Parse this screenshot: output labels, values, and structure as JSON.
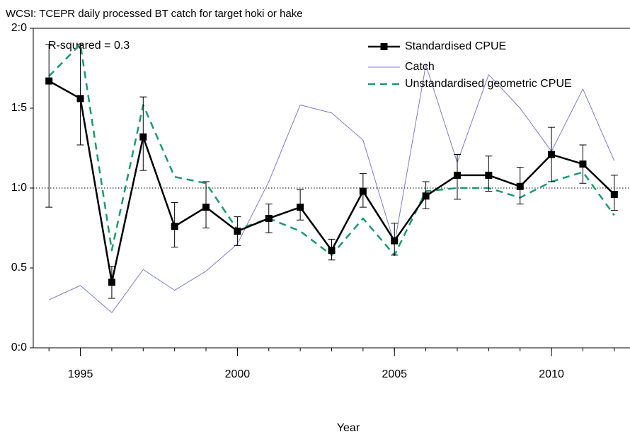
{
  "chart_data": {
    "type": "line",
    "title": "WCSI: TCEPR daily processed BT catch for target hoki or hake",
    "annotation": "R-squared = 0.3",
    "x_label": "Year",
    "x": [
      1994,
      1995,
      1996,
      1997,
      1998,
      1999,
      2000,
      2001,
      2002,
      2003,
      2004,
      2005,
      2006,
      2007,
      2008,
      2009,
      2010,
      2011,
      2012
    ],
    "xlim": [
      1993.5,
      2012.5
    ],
    "xticks": [
      1995,
      2000,
      2005,
      2010
    ],
    "ylim": [
      0,
      2
    ],
    "yticks": [
      {
        "value": 0,
        "label": "0:0"
      },
      {
        "value": 0.5,
        "label": "0.5"
      },
      {
        "value": 1,
        "label": "1:0"
      },
      {
        "value": 1.5,
        "label": "1:5"
      },
      {
        "value": 2,
        "label": "2:0"
      }
    ],
    "reference_line": 1,
    "series": [
      {
        "name": "Standardised CPUE",
        "color": "#000000",
        "dash": false,
        "marker": true,
        "values": [
          1.67,
          1.56,
          0.41,
          1.32,
          0.76,
          0.88,
          0.73,
          0.81,
          0.88,
          0.61,
          0.98,
          0.67,
          0.95,
          1.08,
          1.08,
          1.01,
          1.21,
          1.15,
          0.96
        ],
        "lower": [
          0.88,
          1.27,
          0.31,
          1.11,
          0.63,
          0.75,
          0.64,
          0.72,
          0.8,
          0.55,
          0.88,
          0.58,
          0.87,
          0.93,
          0.98,
          0.9,
          1.04,
          1.03,
          0.86
        ],
        "upper": [
          1.9,
          1.9,
          0.51,
          1.57,
          0.91,
          1.04,
          0.82,
          0.9,
          0.99,
          0.68,
          1.09,
          0.78,
          1.04,
          1.21,
          1.2,
          1.13,
          1.38,
          1.27,
          1.08
        ]
      },
      {
        "name": "Catch",
        "color": "#7b7bc4",
        "dash": false,
        "marker": false,
        "values": [
          0.3,
          0.39,
          0.22,
          0.49,
          0.36,
          0.48,
          0.65,
          1.04,
          1.52,
          1.47,
          1.3,
          0.65,
          1.77,
          1.16,
          1.71,
          1.5,
          1.23,
          1.62,
          1.17
        ]
      },
      {
        "name": "Unstandardised geometric CPUE",
        "color": "#1a9a6c",
        "dash": true,
        "marker": false,
        "values": [
          1.7,
          1.9,
          0.61,
          1.52,
          1.07,
          1.03,
          0.74,
          0.81,
          0.73,
          0.58,
          0.81,
          0.58,
          0.98,
          1.0,
          1.0,
          0.94,
          1.04,
          1.1,
          0.83
        ]
      }
    ]
  }
}
